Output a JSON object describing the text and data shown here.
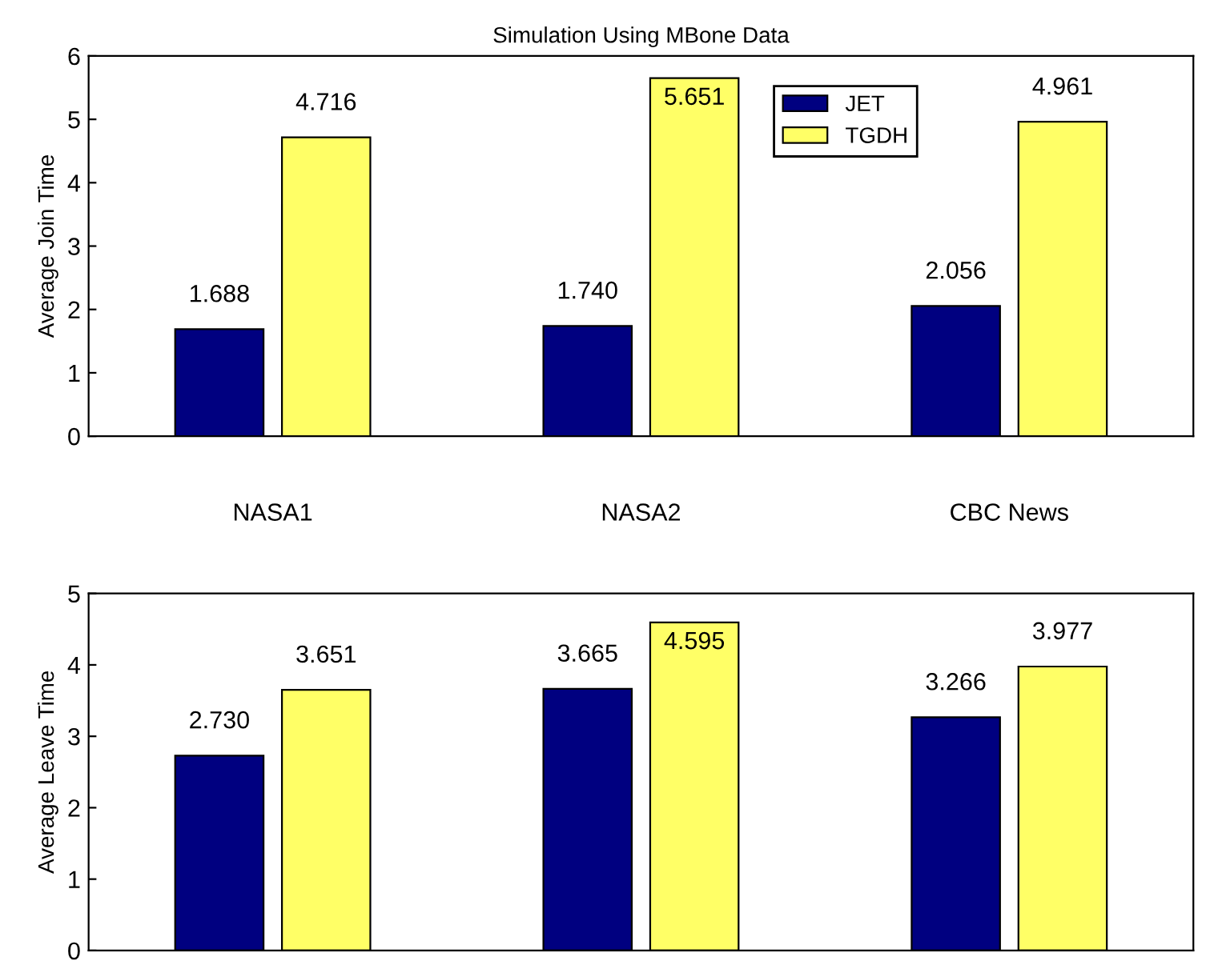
{
  "chart_data": [
    {
      "type": "bar",
      "title": "Simulation Using MBone Data",
      "ylabel": "Average Join Time",
      "categories": [
        "NASA1",
        "NASA2",
        "CBC News"
      ],
      "ylim": [
        0,
        6
      ],
      "yticks": [
        0,
        1,
        2,
        3,
        4,
        5,
        6
      ],
      "legend": "top right",
      "grid": false,
      "series": [
        {
          "name": "JET",
          "color": "#000080",
          "values": [
            1.688,
            1.74,
            2.056
          ],
          "value_labels": [
            "1.688",
            "1.740",
            "2.056"
          ]
        },
        {
          "name": "TGDH",
          "color": "#ffff66",
          "values": [
            4.716,
            5.651,
            4.961
          ],
          "value_labels": [
            "4.716",
            "5.651",
            "4.961"
          ]
        }
      ]
    },
    {
      "type": "bar",
      "ylabel": "Average Leave Time",
      "categories": [
        null,
        null,
        null
      ],
      "ylim": [
        0,
        5
      ],
      "yticks": [
        0,
        1,
        2,
        3,
        4,
        5
      ],
      "tick_labels": "y",
      "legend": false,
      "grid": false,
      "series": [
        {
          "color": "#000080",
          "values": [
            2.73,
            3.665,
            3.266
          ],
          "value_labels": [
            "2.730",
            "3.665",
            "3.266"
          ]
        },
        {
          "color": "#ffff66",
          "values": [
            3.651,
            4.595,
            3.977
          ],
          "value_labels": [
            "3.651",
            "4.595",
            "3.977"
          ]
        }
      ]
    }
  ]
}
